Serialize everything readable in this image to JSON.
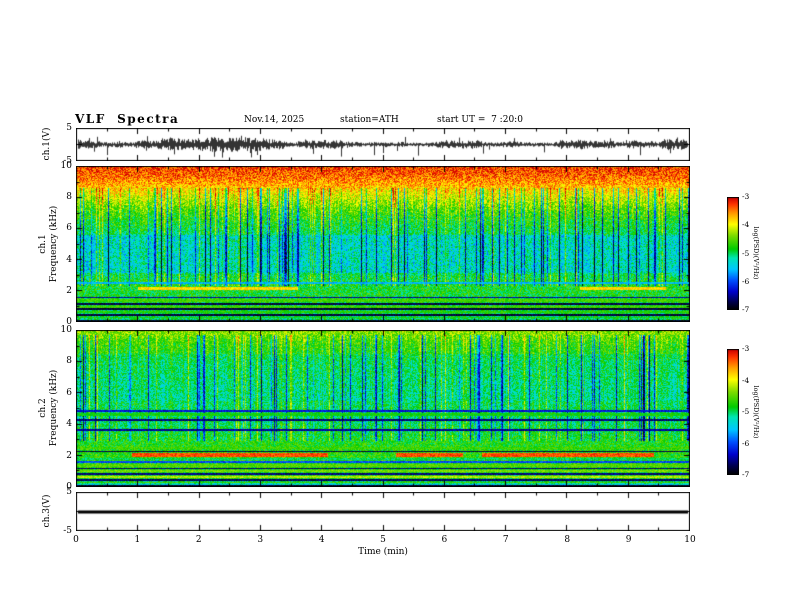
{
  "header": {
    "title": "VLF  Spectra",
    "date": "Nov.14, 2025",
    "station": "station=ATH",
    "start_ut": "start UT =  7 :20:0"
  },
  "panels": {
    "wave1": {
      "label": "ch.1(V)",
      "ytick_top": "5",
      "ytick_bottom": "-5"
    },
    "spec1": {
      "label_ch": "ch.1",
      "label_axis": "Frequency (kHz)",
      "yticks": [
        "10",
        "8",
        "6",
        "4",
        "2",
        "0"
      ]
    },
    "spec2": {
      "label_ch": "ch.2",
      "label_axis": "Frequency (kHz)",
      "yticks": [
        "10",
        "8",
        "6",
        "4",
        "2",
        "0"
      ]
    },
    "wave3": {
      "label": "ch.3(V)",
      "ytick_top": "5",
      "ytick_bottom": "-5"
    }
  },
  "xaxis": {
    "label": "Time (min)",
    "ticks": [
      "0",
      "1",
      "2",
      "3",
      "4",
      "5",
      "6",
      "7",
      "8",
      "9",
      "10"
    ]
  },
  "colorbars": [
    {
      "unit": "log(PSD)(V²/Hz)",
      "ticks": [
        "-3",
        "-4",
        "-5",
        "-6",
        "-7"
      ]
    },
    {
      "unit": "log(PSD)(V²/Hz)",
      "ticks": [
        "-3",
        "-4",
        "-5",
        "-6",
        "-7"
      ]
    }
  ],
  "colormap_stops": [
    [
      0.0,
      "#000000"
    ],
    [
      0.07,
      "#000050"
    ],
    [
      0.16,
      "#0000cc"
    ],
    [
      0.26,
      "#0050ff"
    ],
    [
      0.36,
      "#00c8ff"
    ],
    [
      0.46,
      "#00e6b4"
    ],
    [
      0.54,
      "#00cc00"
    ],
    [
      0.66,
      "#7ddc00"
    ],
    [
      0.76,
      "#ffff00"
    ],
    [
      0.86,
      "#ff9900"
    ],
    [
      0.94,
      "#ff3300"
    ],
    [
      1.0,
      "#cc0000"
    ]
  ],
  "chart_data": [
    {
      "type": "line",
      "name": "ch1_waveform",
      "ylabel": "ch.1(V)",
      "xlabel": "Time (min)",
      "xlim": [
        0,
        10
      ],
      "ylim": [
        -5,
        5
      ],
      "yticks": [
        5,
        -5
      ],
      "description": "Dense zero-centered broadband noise trace, typical excursion ±1.5 V, frequent negative spikes reaching -4 to -5 V over the full 0-10 min record",
      "render": {
        "seed": 20251114,
        "spike_prob": 0.05,
        "spike_amp": 3.2
      }
    },
    {
      "type": "heatmap",
      "name": "ch1_spectrogram",
      "ylabel": "ch.1 Frequency (kHz)",
      "xlim": [
        0,
        10
      ],
      "ylim": [
        0,
        10
      ],
      "yticks": [
        0,
        2,
        4,
        6,
        8,
        10
      ],
      "zlabel": "log(PSD)(V²/Hz)",
      "zlim": [
        -7,
        -3
      ],
      "description": "VLF spectrogram: intense red/orange power above ~8.5 kHz grading to yellow 7-8.5 kHz; green mid band 2.5-7 kHz crossed by dense dark-blue vertical sferic streaks (strongest 3-5.5 kHz); horizontal ELF line structure below 1.6 kHz alternating black and green stripes; intermittent red-brown line near 2.1 kHz around 1-3.6 min and 8.2-9.6 min",
      "render": {
        "seed": 101,
        "noise": 0.22,
        "profile": [
          [
            0,
            0.5
          ],
          [
            1.5,
            0.54
          ],
          [
            2.5,
            0.55
          ],
          [
            3.2,
            0.5
          ],
          [
            5.6,
            0.5
          ],
          [
            6.5,
            0.56
          ],
          [
            7.2,
            0.62
          ],
          [
            8.0,
            0.72
          ],
          [
            8.8,
            0.84
          ],
          [
            9.4,
            0.9
          ],
          [
            10,
            0.94
          ]
        ],
        "streaks": {
          "prob": 0.11,
          "strength": -0.3,
          "band": [
            2.3,
            8.6
          ]
        },
        "dense": [
          3.1,
          5.6,
          -0.07
        ],
        "bands": [
          [
            0,
            0.12,
            0.03
          ],
          [
            0.2,
            0.32,
            0.55
          ],
          [
            0.36,
            0.48,
            0.05
          ],
          [
            0.55,
            0.67,
            0.57
          ],
          [
            0.72,
            0.84,
            0.05
          ],
          [
            0.9,
            1.02,
            0.6
          ],
          [
            1.08,
            1.2,
            0.06
          ],
          [
            1.28,
            1.42,
            0.6
          ],
          [
            1.5,
            1.6,
            0.12
          ],
          [
            2.02,
            2.2,
            0.8,
            1.0,
            3.6
          ],
          [
            2.02,
            2.2,
            0.8,
            8.2,
            9.6
          ],
          [
            2.45,
            2.55,
            0.35
          ]
        ]
      }
    },
    {
      "type": "heatmap",
      "name": "ch2_spectrogram",
      "ylabel": "ch.2 Frequency (kHz)",
      "xlim": [
        0,
        10
      ],
      "ylim": [
        0,
        10
      ],
      "yticks": [
        0,
        2,
        4,
        6,
        8,
        10
      ],
      "zlabel": "log(PSD)(V²/Hz)",
      "zlim": [
        -7,
        -3
      ],
      "description": "Second-channel spectrogram: green background with blue vertical sferic streaks 3-9.7 kHz, yellowish top edge near 10 kHz; rich horizontal line structure below 5 kHz including black lines near 4.25, 3.6, 2.25, 1.15, 0.8 and 0.4 kHz; strong red horizontal band near 2.0 kHz in segments (~0.9-4.1, 5.2-6.3, 6.6-9.4 min); yellow-green ELF bands 0.5-1.5 kHz; black at the bottom edge",
      "render": {
        "seed": 202,
        "noise": 0.2,
        "profile": [
          [
            0,
            0.35
          ],
          [
            0.4,
            0.55
          ],
          [
            1.7,
            0.58
          ],
          [
            2.8,
            0.56
          ],
          [
            4.3,
            0.5
          ],
          [
            6.0,
            0.52
          ],
          [
            8.0,
            0.55
          ],
          [
            9.2,
            0.6
          ],
          [
            10,
            0.68
          ]
        ],
        "streaks": {
          "prob": 0.12,
          "strength": -0.28,
          "band": [
            2.9,
            9.7
          ]
        },
        "dense": [
          5.5,
          8.5,
          -0.04
        ],
        "bands": [
          [
            0,
            0.12,
            0.03
          ],
          [
            0.2,
            0.3,
            0.6
          ],
          [
            0.35,
            0.45,
            0.08
          ],
          [
            0.52,
            0.68,
            0.7
          ],
          [
            0.74,
            0.84,
            0.1
          ],
          [
            0.9,
            1.05,
            0.65
          ],
          [
            1.1,
            1.2,
            0.08
          ],
          [
            1.26,
            1.44,
            0.62
          ],
          [
            1.52,
            1.62,
            0.25
          ],
          [
            1.7,
            1.8,
            0.5
          ],
          [
            1.92,
            2.12,
            0.92,
            0.9,
            4.1
          ],
          [
            1.92,
            2.12,
            0.92,
            5.2,
            6.3
          ],
          [
            1.92,
            2.12,
            0.92,
            6.6,
            9.4
          ],
          [
            2.18,
            2.3,
            0.06
          ],
          [
            2.4,
            2.52,
            0.6
          ],
          [
            3.55,
            3.68,
            0.12
          ],
          [
            4.2,
            4.33,
            0.1
          ],
          [
            4.55,
            4.68,
            0.55
          ],
          [
            4.78,
            4.88,
            0.18
          ]
        ]
      }
    },
    {
      "type": "line",
      "name": "ch3_waveform",
      "ylabel": "ch.3(V)",
      "xlim": [
        0,
        10
      ],
      "ylim": [
        -5,
        5
      ],
      "yticks": [
        5,
        -5
      ],
      "description": "Constant 0 V flat thick black line across the entire record (inactive channel)",
      "render": {
        "flat": true,
        "thickness": 3
      }
    }
  ]
}
